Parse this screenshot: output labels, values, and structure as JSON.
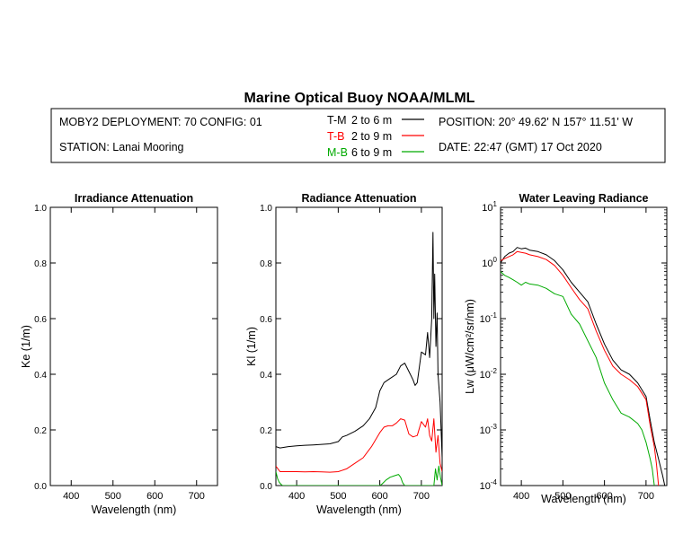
{
  "header": {
    "title": "Marine Optical Buoy NOAA/MLML",
    "deployment": "MOBY2 DEPLOYMENT: 70 CONFIG: 01",
    "station": "STATION: Lanai Mooring",
    "position": "POSITION: 20° 49.62' N   157° 11.51' W",
    "date": "DATE: 22:47 (GMT) 17 Oct 2020",
    "legend": [
      {
        "key": "T-M",
        "depth": "2 to 6  m",
        "color": "#000000"
      },
      {
        "key": "T-B",
        "depth": "2 to 9  m",
        "color": "#ff0000"
      },
      {
        "key": "M-B",
        "depth": "6 to 9  m",
        "color": "#00aa00"
      }
    ]
  },
  "chart_data": [
    {
      "type": "line",
      "title": "Irradiance Attenuation",
      "xlabel": "Wavelength (nm)",
      "ylabel": "Ke  (1/m)",
      "xlim": [
        350,
        750
      ],
      "ylim": [
        0,
        1.0
      ],
      "xticks": [
        400,
        500,
        600,
        700
      ],
      "xtick_labels": [
        "400",
        "500",
        "600",
        "700"
      ],
      "yticks": [
        0,
        0.2,
        0.4,
        0.6,
        0.8,
        1.0
      ],
      "ytick_labels": [
        "0.0",
        "0.2",
        "0.4",
        "0.6",
        "0.8",
        "1.0"
      ],
      "series": []
    },
    {
      "type": "line",
      "title": "Radiance Attenuation",
      "xlabel": "Wavelength (nm)",
      "ylabel": "Kl  (1/m)",
      "xlim": [
        350,
        750
      ],
      "ylim": [
        0,
        1.0
      ],
      "xticks": [
        400,
        500,
        600,
        700
      ],
      "xtick_labels": [
        "400",
        "500",
        "600",
        "700"
      ],
      "yticks": [
        0,
        0.2,
        0.4,
        0.6,
        0.8,
        1.0
      ],
      "ytick_labels": [
        "0.0",
        "0.2",
        "0.4",
        "0.6",
        "0.8",
        "1.0"
      ],
      "series": [
        {
          "name": "T-M",
          "color": "#000000",
          "x": [
            350,
            360,
            380,
            400,
            420,
            440,
            460,
            480,
            500,
            510,
            520,
            540,
            560,
            575,
            590,
            600,
            610,
            625,
            640,
            650,
            660,
            670,
            680,
            685,
            690,
            700,
            710,
            715,
            720,
            725,
            728,
            730,
            732,
            735,
            738,
            740,
            745,
            750
          ],
          "y": [
            0.14,
            0.135,
            0.14,
            0.143,
            0.145,
            0.146,
            0.148,
            0.15,
            0.158,
            0.175,
            0.18,
            0.195,
            0.215,
            0.24,
            0.28,
            0.34,
            0.37,
            0.385,
            0.4,
            0.43,
            0.44,
            0.41,
            0.38,
            0.36,
            0.37,
            0.48,
            0.47,
            0.55,
            0.46,
            0.6,
            0.91,
            0.6,
            0.76,
            0.5,
            0.62,
            0.4,
            0.3,
            0.1
          ]
        },
        {
          "name": "T-B",
          "color": "#ff0000",
          "x": [
            350,
            355,
            360,
            380,
            400,
            420,
            440,
            460,
            480,
            500,
            520,
            540,
            560,
            580,
            600,
            610,
            620,
            630,
            640,
            650,
            660,
            665,
            670,
            680,
            690,
            700,
            710,
            715,
            720,
            725,
            730,
            735,
            740,
            745,
            750
          ],
          "y": [
            0.07,
            0.06,
            0.05,
            0.05,
            0.05,
            0.049,
            0.05,
            0.049,
            0.048,
            0.05,
            0.06,
            0.08,
            0.1,
            0.14,
            0.19,
            0.21,
            0.215,
            0.215,
            0.225,
            0.24,
            0.235,
            0.21,
            0.185,
            0.175,
            0.18,
            0.23,
            0.21,
            0.24,
            0.18,
            0.16,
            0.24,
            0.12,
            0.18,
            0.08,
            0.05
          ]
        },
        {
          "name": "M-B",
          "color": "#00aa00",
          "x": [
            350,
            354,
            358,
            362,
            366,
            370,
            375,
            600,
            605,
            615,
            625,
            635,
            645,
            650,
            655,
            660,
            730,
            734,
            738,
            742,
            746,
            750
          ],
          "y": [
            0.05,
            0.025,
            0.012,
            0.005,
            0.0,
            0.0,
            0.0,
            0.0,
            0.005,
            0.02,
            0.03,
            0.035,
            0.04,
            0.03,
            0.01,
            0.0,
            0.0,
            0.06,
            0.02,
            0.07,
            0.03,
            0.0
          ]
        }
      ]
    },
    {
      "type": "line",
      "title": "Water Leaving Radiance",
      "xlabel": "Wavelength (nm)",
      "ylabel": "Lw  (μW/cm²/sr/nm)",
      "yscale": "log",
      "xlim": [
        350,
        750
      ],
      "ylim": [
        0.0001,
        10
      ],
      "xticks": [
        400,
        500,
        600,
        700
      ],
      "xtick_labels": [
        "400",
        "500",
        "600",
        "700"
      ],
      "yticks": [
        0.0001,
        0.001,
        0.01,
        0.1,
        1,
        10
      ],
      "ytick_labels": [
        [
          "10",
          "-4"
        ],
        [
          "10",
          "-3"
        ],
        [
          "10",
          "-2"
        ],
        [
          "10",
          "-1"
        ],
        [
          "10",
          "0"
        ],
        [
          "10",
          "1"
        ]
      ],
      "series": [
        {
          "name": "T-M",
          "color": "#000000",
          "x": [
            350,
            360,
            370,
            380,
            390,
            400,
            410,
            420,
            440,
            460,
            480,
            500,
            520,
            540,
            560,
            580,
            600,
            620,
            640,
            660,
            680,
            700,
            710,
            720,
            730,
            740,
            745,
            750
          ],
          "y": [
            1.0,
            1.3,
            1.5,
            1.6,
            1.9,
            1.8,
            1.85,
            1.7,
            1.6,
            1.4,
            1.1,
            0.75,
            0.45,
            0.3,
            0.2,
            0.08,
            0.035,
            0.018,
            0.012,
            0.01,
            0.007,
            0.004,
            0.0015,
            0.0006,
            0.0003,
            0.00015,
            0.0001,
            0.0001
          ]
        },
        {
          "name": "T-B",
          "color": "#ff0000",
          "x": [
            350,
            360,
            370,
            380,
            390,
            400,
            410,
            420,
            440,
            460,
            480,
            500,
            520,
            540,
            560,
            580,
            600,
            620,
            640,
            660,
            680,
            700,
            710,
            720,
            725,
            730
          ],
          "y": [
            1.1,
            1.2,
            1.3,
            1.4,
            1.6,
            1.55,
            1.5,
            1.4,
            1.3,
            1.15,
            0.9,
            0.6,
            0.36,
            0.22,
            0.15,
            0.06,
            0.027,
            0.014,
            0.01,
            0.008,
            0.006,
            0.0035,
            0.0012,
            0.0005,
            0.00025,
            0.0001
          ]
        },
        {
          "name": "M-B",
          "color": "#00aa00",
          "x": [
            350,
            360,
            370,
            380,
            390,
            400,
            410,
            420,
            440,
            460,
            480,
            500,
            520,
            540,
            560,
            580,
            600,
            620,
            640,
            660,
            680,
            690,
            700,
            710,
            715,
            720
          ],
          "y": [
            0.7,
            0.6,
            0.55,
            0.5,
            0.45,
            0.4,
            0.45,
            0.42,
            0.4,
            0.35,
            0.28,
            0.25,
            0.12,
            0.08,
            0.04,
            0.02,
            0.007,
            0.0035,
            0.002,
            0.0017,
            0.0013,
            0.001,
            0.0006,
            0.0003,
            0.0002,
            0.0001
          ]
        }
      ]
    }
  ]
}
